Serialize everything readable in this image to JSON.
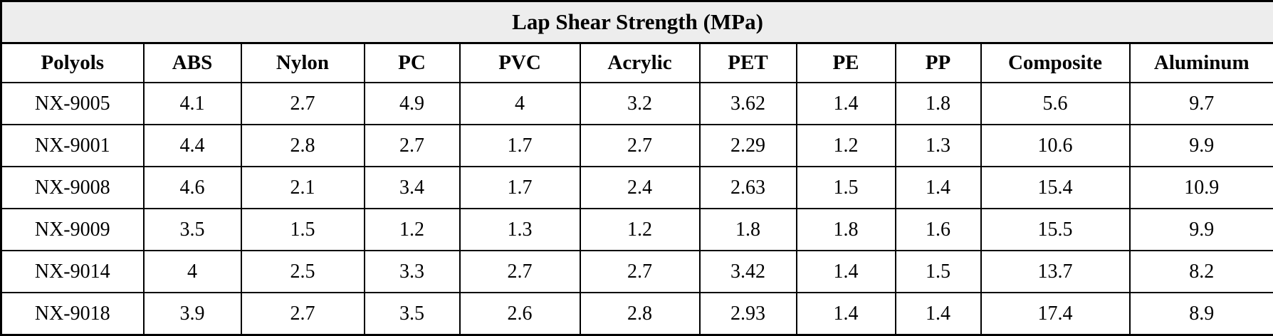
{
  "title": "Lap Shear Strength (MPa)",
  "colors": {
    "title_band_bg": "#ededed",
    "border": "#000000",
    "text": "#000000",
    "cell_bg": "#ffffff"
  },
  "table": {
    "columns": [
      "Polyols",
      "ABS",
      "Nylon",
      "PC",
      "PVC",
      "Acrylic",
      "PET",
      "PE",
      "PP",
      "Composite",
      "Aluminum"
    ],
    "rows": [
      [
        "NX-9005",
        "4.1",
        "2.7",
        "4.9",
        "4",
        "3.2",
        "3.62",
        "1.4",
        "1.8",
        "5.6",
        "9.7"
      ],
      [
        "NX-9001",
        "4.4",
        "2.8",
        "2.7",
        "1.7",
        "2.7",
        "2.29",
        "1.2",
        "1.3",
        "10.6",
        "9.9"
      ],
      [
        "NX-9008",
        "4.6",
        "2.1",
        "3.4",
        "1.7",
        "2.4",
        "2.63",
        "1.5",
        "1.4",
        "15.4",
        "10.9"
      ],
      [
        "NX-9009",
        "3.5",
        "1.5",
        "1.2",
        "1.3",
        "1.2",
        "1.8",
        "1.8",
        "1.6",
        "15.5",
        "9.9"
      ],
      [
        "NX-9014",
        "4",
        "2.5",
        "3.3",
        "2.7",
        "2.7",
        "3.42",
        "1.4",
        "1.5",
        "13.7",
        "8.2"
      ],
      [
        "NX-9018",
        "3.9",
        "2.7",
        "3.5",
        "2.6",
        "2.8",
        "2.93",
        "1.4",
        "1.4",
        "17.4",
        "8.9"
      ]
    ]
  },
  "chart_data": {
    "type": "table",
    "title": "Lap Shear Strength (MPa)",
    "columns": [
      "Polyols",
      "ABS",
      "Nylon",
      "PC",
      "PVC",
      "Acrylic",
      "PET",
      "PE",
      "PP",
      "Composite",
      "Aluminum"
    ],
    "row_labels": [
      "NX-9005",
      "NX-9001",
      "NX-9008",
      "NX-9009",
      "NX-9014",
      "NX-9018"
    ],
    "series": [
      {
        "name": "NX-9005",
        "values": [
          4.1,
          2.7,
          4.9,
          4,
          3.2,
          3.62,
          1.4,
          1.8,
          5.6,
          9.7
        ]
      },
      {
        "name": "NX-9001",
        "values": [
          4.4,
          2.8,
          2.7,
          1.7,
          2.7,
          2.29,
          1.2,
          1.3,
          10.6,
          9.9
        ]
      },
      {
        "name": "NX-9008",
        "values": [
          4.6,
          2.1,
          3.4,
          1.7,
          2.4,
          2.63,
          1.5,
          1.4,
          15.4,
          10.9
        ]
      },
      {
        "name": "NX-9009",
        "values": [
          3.5,
          1.5,
          1.2,
          1.3,
          1.2,
          1.8,
          1.8,
          1.6,
          15.5,
          9.9
        ]
      },
      {
        "name": "NX-9014",
        "values": [
          4,
          2.5,
          3.3,
          2.7,
          2.7,
          3.42,
          1.4,
          1.5,
          13.7,
          8.2
        ]
      },
      {
        "name": "NX-9018",
        "values": [
          3.9,
          2.7,
          3.5,
          2.6,
          2.8,
          2.93,
          1.4,
          1.4,
          17.4,
          8.9
        ]
      }
    ],
    "units": "MPa"
  }
}
